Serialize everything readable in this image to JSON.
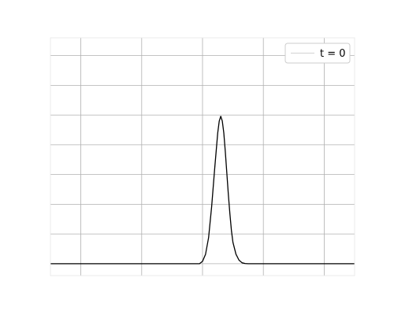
{
  "chart_data": {
    "type": "line",
    "title": "",
    "xlabel": "",
    "ylabel": "",
    "xlim": [
      0,
      1
    ],
    "ylim": [
      -0.05,
      0.95
    ],
    "grid": true,
    "tick_labels_visible": false,
    "legend": {
      "placement": "top-right",
      "entries": [
        "t = 0"
      ]
    },
    "series": [
      {
        "name": "t = 0",
        "color": "#000000",
        "style": "solid",
        "x": [
          0.0,
          0.49,
          0.5,
          0.51,
          0.52,
          0.53,
          0.54,
          0.55,
          0.555,
          0.56,
          0.565,
          0.57,
          0.575,
          0.58,
          0.585,
          0.59,
          0.595,
          0.6,
          0.61,
          0.62,
          0.63,
          0.64,
          0.65,
          1.0
        ],
        "y": [
          0.0,
          0.0,
          0.01,
          0.04,
          0.11,
          0.24,
          0.4,
          0.55,
          0.6,
          0.62,
          0.6,
          0.55,
          0.47,
          0.38,
          0.29,
          0.21,
          0.14,
          0.09,
          0.04,
          0.015,
          0.004,
          0.001,
          0.0,
          0.0
        ]
      }
    ]
  }
}
